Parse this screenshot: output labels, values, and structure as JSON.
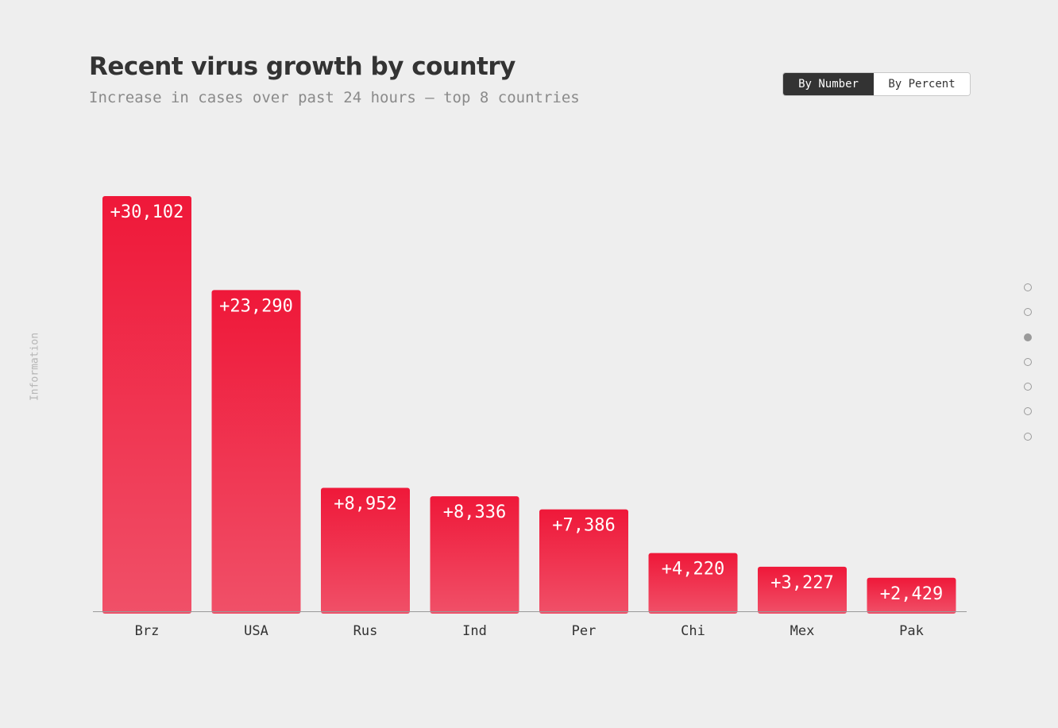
{
  "header": {
    "title": "Recent virus growth by country",
    "subtitle": "Increase in cases over past 24 hours — top 8 countries"
  },
  "toggle": {
    "options": [
      "By Number",
      "By Percent"
    ],
    "selected": "By Number"
  },
  "side_label": "Information",
  "pagination": {
    "count": 7,
    "active_index": 2
  },
  "colors": {
    "bar_top": "#ef1839",
    "bar_bottom": "#f05068",
    "axis": "#999999",
    "label_text": "#ffffff",
    "tick_text": "#333333"
  },
  "chart_data": {
    "type": "bar",
    "title": "Recent virus growth by country",
    "subtitle": "Increase in cases over past 24 hours — top 8 countries",
    "categories": [
      "Brz",
      "USA",
      "Rus",
      "Ind",
      "Per",
      "Chi",
      "Mex",
      "Pak"
    ],
    "values": [
      30102,
      23290,
      8952,
      8336,
      7386,
      4220,
      3227,
      2429
    ],
    "data_labels": [
      "+30,102",
      "+23,290",
      "+8,952",
      "+8,336",
      "+7,386",
      "+4,220",
      "+3,227",
      "+2,429"
    ],
    "xlabel": "",
    "ylabel": "",
    "ylim": [
      0,
      30102
    ],
    "grid": false,
    "legend": "none"
  }
}
